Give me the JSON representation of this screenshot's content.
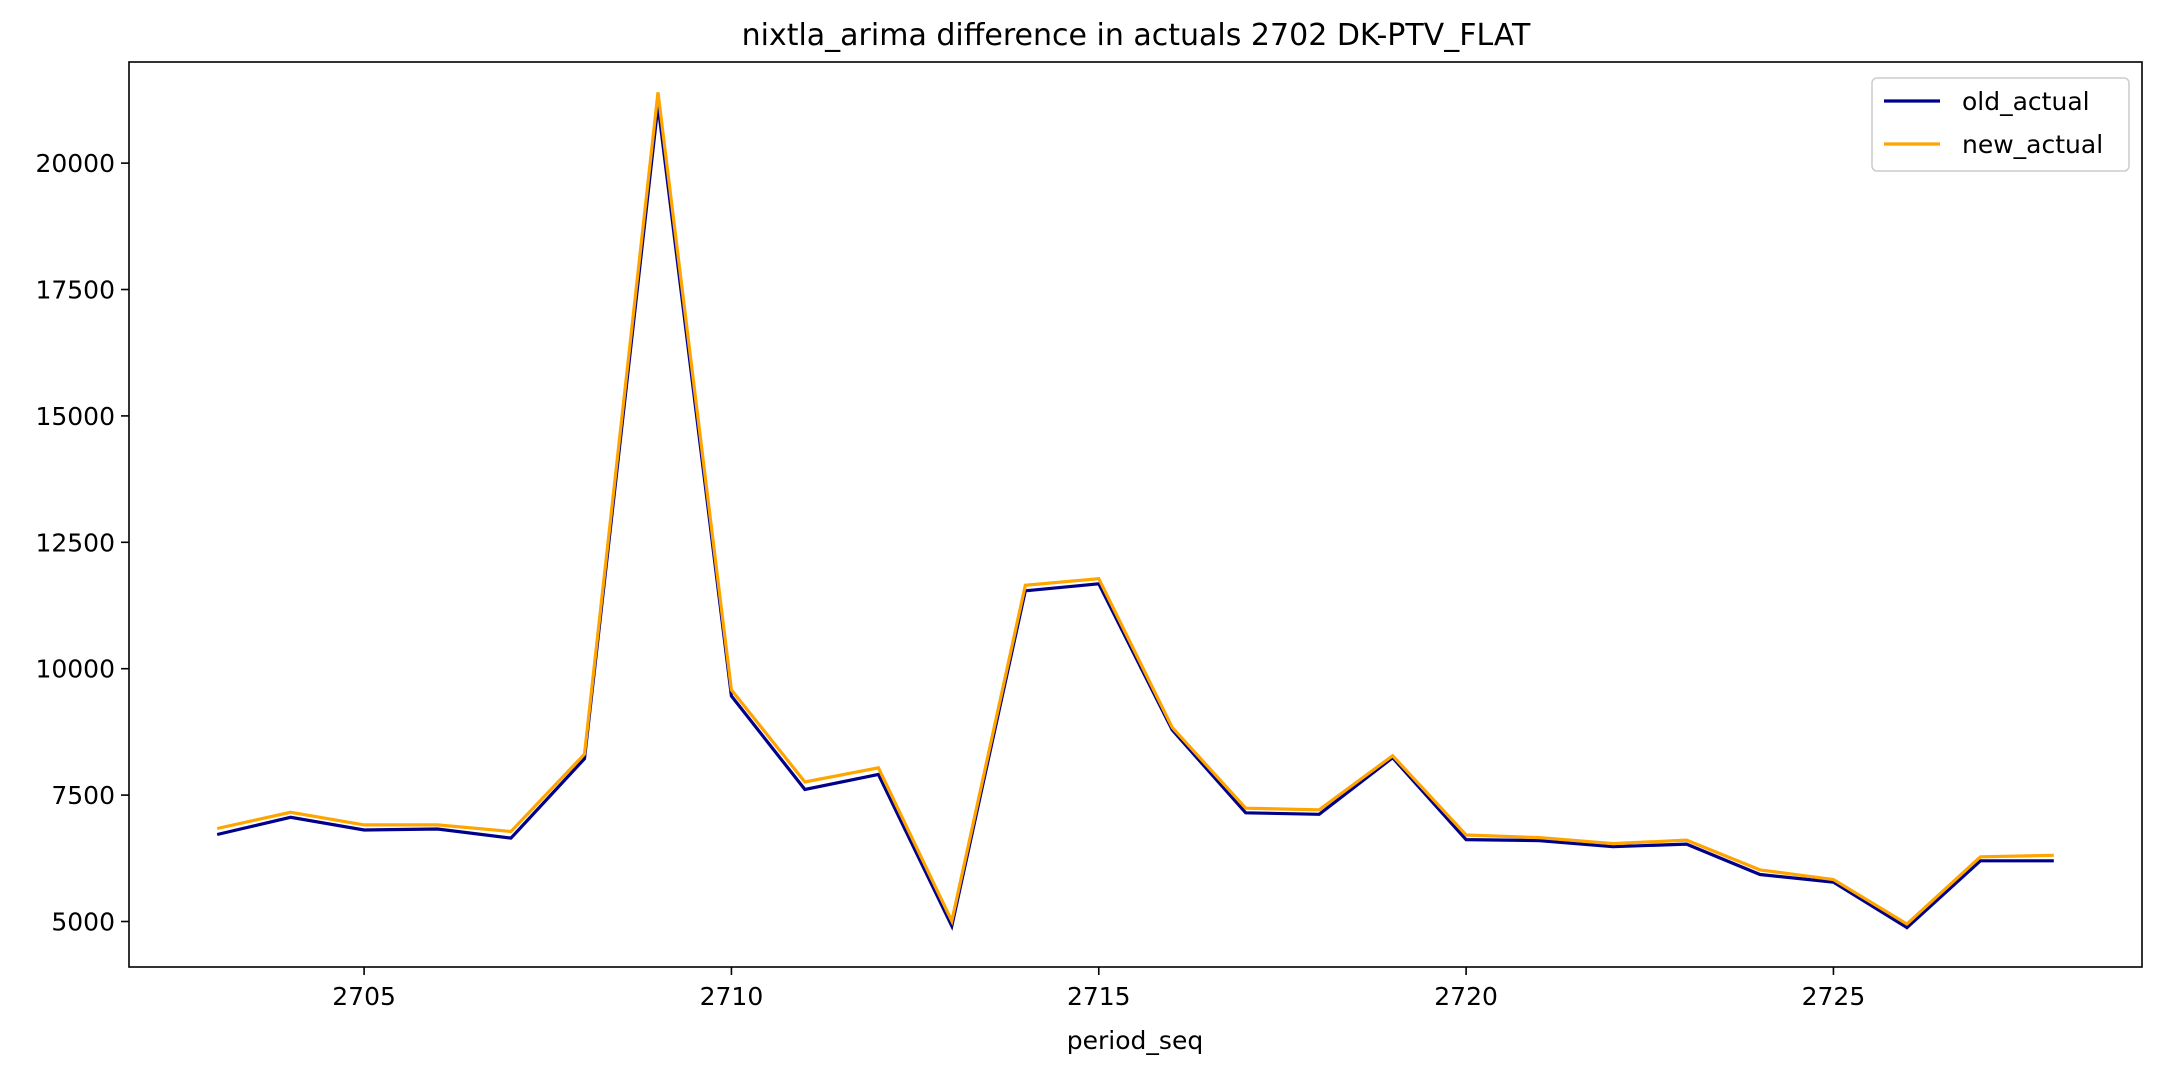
{
  "chart_data": {
    "type": "line",
    "title": "nixtla_arima difference in actuals 2702 DK-PTV_FLAT",
    "xlabel": "period_seq",
    "ylabel": "",
    "xlim": [
      2701.8,
      2729.2
    ],
    "ylim": [
      4100,
      22000
    ],
    "xticks": [
      2705,
      2710,
      2715,
      2720,
      2725
    ],
    "yticks": [
      5000,
      7500,
      10000,
      12500,
      15000,
      17500,
      20000
    ],
    "grid": false,
    "legend_position": "top-right",
    "x": [
      2703,
      2704,
      2705,
      2706,
      2707,
      2708,
      2709,
      2710,
      2711,
      2712,
      2713,
      2714,
      2715,
      2716,
      2717,
      2718,
      2719,
      2720,
      2721,
      2722,
      2723,
      2724,
      2725,
      2726,
      2727,
      2728
    ],
    "series": [
      {
        "name": "old_actual",
        "color": "#00008b",
        "values": [
          6720,
          7060,
          6810,
          6830,
          6650,
          8220,
          21150,
          9460,
          7610,
          7910,
          4910,
          11540,
          11680,
          8790,
          7150,
          7120,
          8240,
          6620,
          6600,
          6480,
          6530,
          5930,
          5780,
          4880,
          6200,
          6200
        ]
      },
      {
        "name": "new_actual",
        "color": "#ffa500",
        "values": [
          6840,
          7160,
          6910,
          6910,
          6780,
          8310,
          21400,
          9580,
          7760,
          8040,
          5010,
          11650,
          11780,
          8840,
          7240,
          7210,
          8280,
          6710,
          6660,
          6540,
          6610,
          6020,
          5830,
          4950,
          6280,
          6310
        ]
      }
    ]
  }
}
